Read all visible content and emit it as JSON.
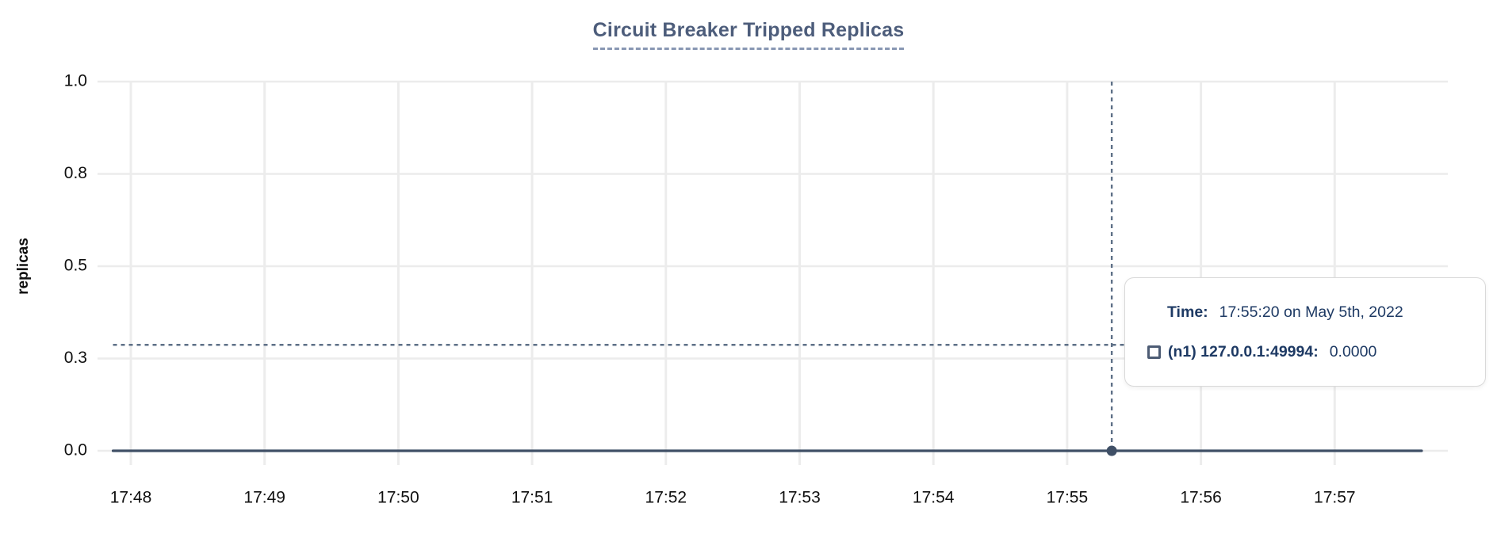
{
  "title": "Circuit Breaker Tripped Replicas",
  "y_axis_label": "replicas",
  "chart_data": {
    "type": "line",
    "title": "Circuit Breaker Tripped Replicas",
    "xlabel": "",
    "ylabel": "replicas",
    "x_tick_labels": [
      "17:48",
      "17:49",
      "17:50",
      "17:51",
      "17:52",
      "17:53",
      "17:54",
      "17:55",
      "17:56",
      "17:57"
    ],
    "y_ticks": [
      {
        "label": "0.0",
        "value": 0
      },
      {
        "label": "0.3",
        "value": 0.25
      },
      {
        "label": "0.5",
        "value": 0.5
      },
      {
        "label": "0.8",
        "value": 0.75
      },
      {
        "label": "1.0",
        "value": 1
      }
    ],
    "ylim": [
      0,
      1
    ],
    "grid": true,
    "legend_position": "tooltip",
    "series": [
      {
        "name": "(n1) 127.0.0.1:49994",
        "marker": "hollow-square",
        "constant_value": 0,
        "x_start": "17:47:52",
        "x_end": "17:57:39"
      }
    ],
    "crosshair": {
      "time": "17:55:20",
      "y_value": 0.287,
      "marker_point": {
        "time": "17:55:20",
        "value": 0
      }
    }
  },
  "tooltip": {
    "time_label": "Time:",
    "time_value": "17:55:20 on May 5th, 2022",
    "series_label": "(n1) 127.0.0.1:49994:",
    "series_value": "0.0000"
  },
  "colors": {
    "title_text": "#4d5d7b",
    "title_underline": "#8897b3",
    "series_line": "#3f4f66",
    "marker_dot": "#3f4f66",
    "crosshair": "#5e7087",
    "gridline": "#ececec",
    "tick_label": "#101010",
    "tooltip_text": "#1e3a64",
    "tooltip_border": "#d9d9d9",
    "series_marker_border": "#4d5c74"
  }
}
